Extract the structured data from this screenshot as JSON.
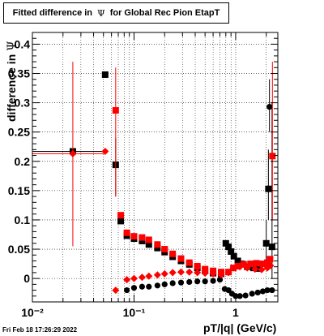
{
  "title": {
    "pre": "Fitted difference in",
    "symbol": "Ψ",
    "post": "for Global Rec Pion EtapT"
  },
  "ylabel": {
    "text": "difference in",
    "symbol": "Ψ"
  },
  "xlabel": "pT/|q| (GeV/c)",
  "timestamp": "Fri Feb 18 17:26:29 2022",
  "colors": {
    "series_black": "#000000",
    "series_red": "#ff0000",
    "grid": "#000000"
  },
  "chart_data": {
    "type": "scatter",
    "x_scale": "log",
    "xlim": [
      0.01,
      2.6
    ],
    "ylim": [
      -0.04,
      0.42
    ],
    "grid": true,
    "x_ticks": [
      {
        "value": 0.01,
        "label": "10⁻²"
      },
      {
        "value": 0.1,
        "label": "10⁻¹"
      },
      {
        "value": 1,
        "label": "1"
      }
    ],
    "y_ticks": [
      {
        "value": 0,
        "label": "0"
      },
      {
        "value": 0.05,
        "label": "0.05"
      },
      {
        "value": 0.1,
        "label": "0.1"
      },
      {
        "value": 0.15,
        "label": "0.15"
      },
      {
        "value": 0.2,
        "label": "0.2"
      },
      {
        "value": 0.25,
        "label": "0.25"
      },
      {
        "value": 0.3,
        "label": "0.3"
      },
      {
        "value": 0.35,
        "label": "0.35"
      },
      {
        "value": 0.4,
        "label": "0.4"
      }
    ],
    "series": [
      {
        "color": "#000000",
        "marker": "square",
        "points": [
          {
            "x": 0.025,
            "y": 0.217,
            "xerr": [
              0.01,
              0.05
            ]
          },
          {
            "x": 0.052,
            "y": 0.348,
            "xerr": [
              0.05,
              0.054
            ]
          },
          {
            "x": 0.066,
            "y": 0.194,
            "xerr": [
              0.064,
              0.068
            ],
            "yerr": [
              0.14,
              0.24
            ]
          },
          {
            "x": 0.074,
            "y": 0.098
          },
          {
            "x": 0.085,
            "y": 0.073
          },
          {
            "x": 0.1,
            "y": 0.068
          },
          {
            "x": 0.12,
            "y": 0.064
          },
          {
            "x": 0.14,
            "y": 0.058
          },
          {
            "x": 0.17,
            "y": 0.052
          },
          {
            "x": 0.2,
            "y": 0.045
          },
          {
            "x": 0.24,
            "y": 0.037
          },
          {
            "x": 0.29,
            "y": 0.03
          },
          {
            "x": 0.35,
            "y": 0.024
          },
          {
            "x": 0.42,
            "y": 0.018
          },
          {
            "x": 0.5,
            "y": 0.013
          },
          {
            "x": 0.6,
            "y": 0.009
          },
          {
            "x": 0.72,
            "y": 0.008
          },
          {
            "x": 0.8,
            "y": 0.06
          },
          {
            "x": 0.85,
            "y": 0.054
          },
          {
            "x": 0.9,
            "y": 0.046
          },
          {
            "x": 0.96,
            "y": 0.038
          },
          {
            "x": 1.05,
            "y": 0.03
          },
          {
            "x": 1.15,
            "y": 0.025
          },
          {
            "x": 1.3,
            "y": 0.02
          },
          {
            "x": 1.5,
            "y": 0.018
          },
          {
            "x": 1.7,
            "y": 0.017
          },
          {
            "x": 2.0,
            "y": 0.06,
            "yerr": [
              0.02,
              0.1
            ]
          },
          {
            "x": 2.1,
            "y": 0.153,
            "yerr": [
              0.1,
              0.22
            ]
          },
          {
            "x": 2.28,
            "y": 0.054,
            "yerr": [
              0.0,
              0.3
            ]
          }
        ]
      },
      {
        "color": "#000000",
        "marker": "circle",
        "points": [
          {
            "x": 0.085,
            "y": -0.02
          },
          {
            "x": 0.1,
            "y": -0.016
          },
          {
            "x": 0.12,
            "y": -0.014
          },
          {
            "x": 0.14,
            "y": -0.014
          },
          {
            "x": 0.17,
            "y": -0.012
          },
          {
            "x": 0.2,
            "y": -0.01
          },
          {
            "x": 0.24,
            "y": -0.008
          },
          {
            "x": 0.29,
            "y": -0.007
          },
          {
            "x": 0.35,
            "y": -0.006
          },
          {
            "x": 0.42,
            "y": -0.005
          },
          {
            "x": 0.5,
            "y": -0.005
          },
          {
            "x": 0.6,
            "y": -0.004
          },
          {
            "x": 0.7,
            "y": -0.002
          },
          {
            "x": 0.78,
            "y": -0.018
          },
          {
            "x": 0.85,
            "y": -0.02
          },
          {
            "x": 0.92,
            "y": -0.026
          },
          {
            "x": 1.0,
            "y": -0.03
          },
          {
            "x": 1.1,
            "y": -0.03
          },
          {
            "x": 1.25,
            "y": -0.029
          },
          {
            "x": 1.45,
            "y": -0.026
          },
          {
            "x": 1.65,
            "y": -0.024
          },
          {
            "x": 1.85,
            "y": -0.022
          },
          {
            "x": 2.05,
            "y": -0.02
          },
          {
            "x": 2.15,
            "y": 0.293,
            "yerr": [
              0.25,
              0.34
            ]
          },
          {
            "x": 2.28,
            "y": -0.02
          }
        ]
      },
      {
        "color": "#ff0000",
        "marker": "square",
        "points": [
          {
            "x": 0.066,
            "y": 0.287,
            "yerr": [
              0.14,
              0.36
            ]
          },
          {
            "x": 0.074,
            "y": 0.108
          },
          {
            "x": 0.085,
            "y": 0.078
          },
          {
            "x": 0.1,
            "y": 0.072
          },
          {
            "x": 0.12,
            "y": 0.07
          },
          {
            "x": 0.14,
            "y": 0.066
          },
          {
            "x": 0.17,
            "y": 0.058
          },
          {
            "x": 0.2,
            "y": 0.05
          },
          {
            "x": 0.24,
            "y": 0.042
          },
          {
            "x": 0.29,
            "y": 0.034
          },
          {
            "x": 0.35,
            "y": 0.027
          },
          {
            "x": 0.42,
            "y": 0.021
          },
          {
            "x": 0.5,
            "y": 0.016
          },
          {
            "x": 0.6,
            "y": 0.013
          },
          {
            "x": 0.72,
            "y": 0.011
          },
          {
            "x": 0.85,
            "y": 0.011
          },
          {
            "x": 0.95,
            "y": 0.018
          },
          {
            "x": 1.05,
            "y": 0.021
          },
          {
            "x": 1.2,
            "y": 0.024
          },
          {
            "x": 1.4,
            "y": 0.025
          },
          {
            "x": 1.6,
            "y": 0.026
          },
          {
            "x": 1.85,
            "y": 0.025
          },
          {
            "x": 2.05,
            "y": 0.027
          },
          {
            "x": 2.18,
            "y": 0.033
          },
          {
            "x": 2.3,
            "y": 0.209,
            "yerr": [
              0.1,
              0.37
            ]
          }
        ]
      },
      {
        "color": "#ff0000",
        "marker": "diamond",
        "points": [
          {
            "x": 0.025,
            "y": 0.213,
            "xerr": [
              0.01,
              0.05
            ],
            "yerr": [
              0.055,
              0.37
            ]
          },
          {
            "x": 0.052,
            "y": 0.217
          },
          {
            "x": 0.066,
            "y": -0.02
          },
          {
            "x": 0.085,
            "y": -0.002
          },
          {
            "x": 0.1,
            "y": 0.0
          },
          {
            "x": 0.12,
            "y": 0.002
          },
          {
            "x": 0.14,
            "y": 0.004
          },
          {
            "x": 0.17,
            "y": 0.006
          },
          {
            "x": 0.2,
            "y": 0.008
          },
          {
            "x": 0.24,
            "y": 0.01
          },
          {
            "x": 0.29,
            "y": 0.011
          },
          {
            "x": 0.35,
            "y": 0.011
          },
          {
            "x": 0.42,
            "y": 0.01
          },
          {
            "x": 0.5,
            "y": 0.009
          },
          {
            "x": 0.6,
            "y": 0.008
          },
          {
            "x": 0.72,
            "y": 0.006
          },
          {
            "x": 0.85,
            "y": 0.01
          },
          {
            "x": 0.95,
            "y": 0.018
          },
          {
            "x": 1.1,
            "y": 0.02
          },
          {
            "x": 1.3,
            "y": 0.018
          },
          {
            "x": 1.55,
            "y": 0.016
          },
          {
            "x": 1.8,
            "y": 0.015
          },
          {
            "x": 2.05,
            "y": 0.018
          },
          {
            "x": 2.2,
            "y": 0.022
          }
        ]
      }
    ]
  }
}
